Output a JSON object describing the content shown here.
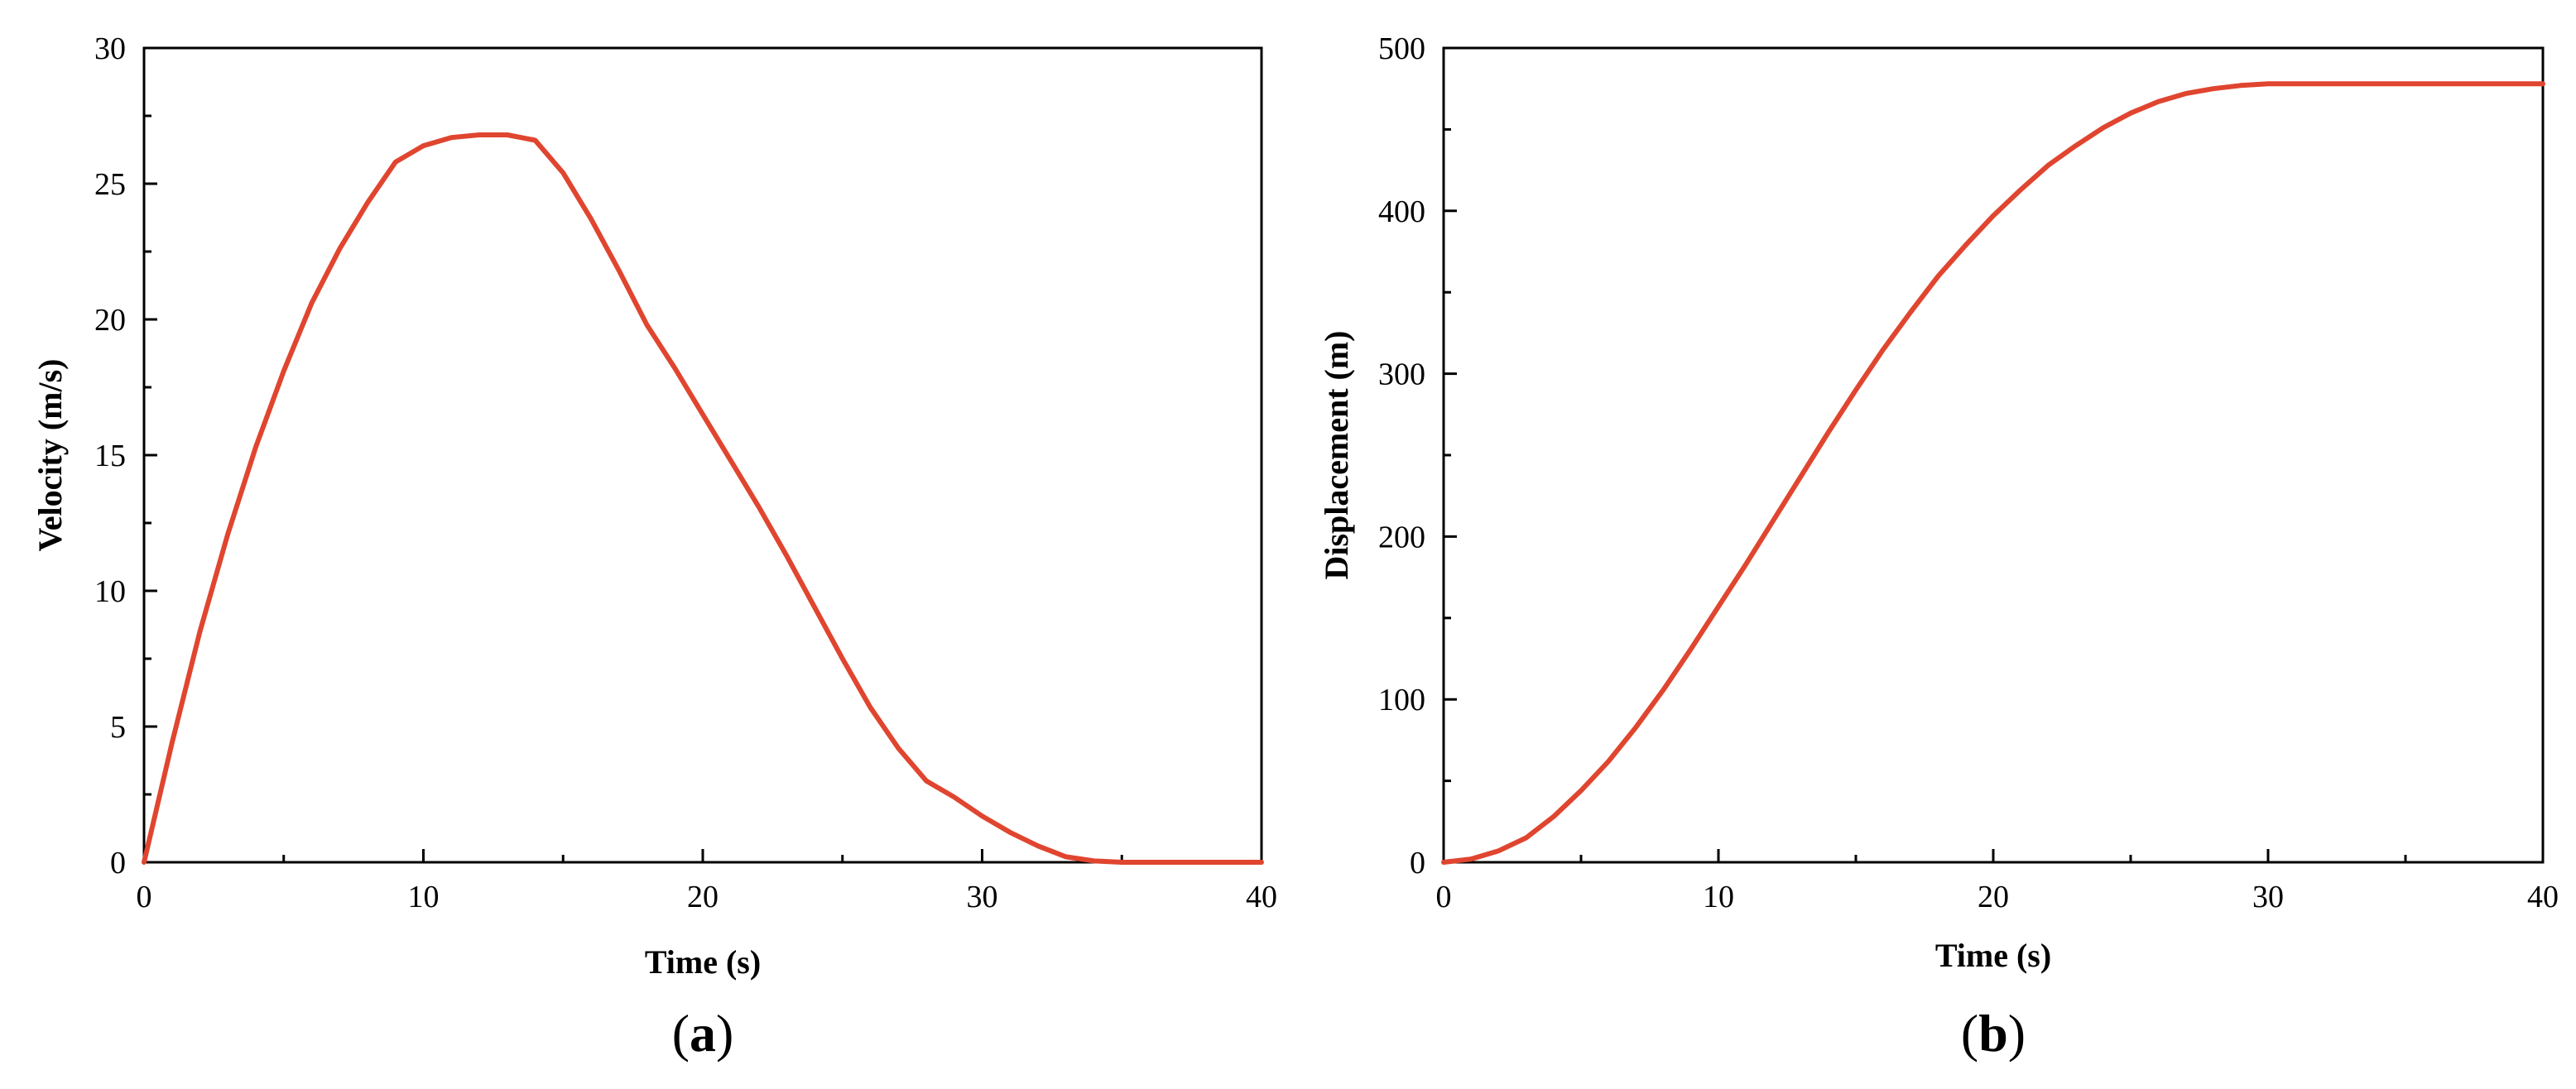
{
  "chart_data": [
    {
      "panel_label": "a",
      "type": "line",
      "title": "",
      "xlabel": "Time (s)",
      "ylabel": "Velocity (m/s)",
      "xlim": [
        0,
        40
      ],
      "ylim": [
        0,
        30
      ],
      "xticks": [
        0,
        10,
        20,
        30,
        40
      ],
      "yticks": [
        0,
        5,
        10,
        15,
        20,
        25,
        30
      ],
      "grid": false,
      "legend": "none",
      "series": [
        {
          "color": "#e0452f",
          "x": [
            0,
            1,
            2,
            3,
            4,
            5,
            6,
            7,
            8,
            9,
            10,
            11,
            12,
            13,
            14,
            15,
            16,
            17,
            18,
            19,
            20,
            21,
            22,
            23,
            24,
            25,
            26,
            27,
            28,
            29,
            30,
            31,
            32,
            33,
            34,
            35,
            36,
            37,
            38,
            39,
            40
          ],
          "y": [
            0,
            4.4,
            8.5,
            12.1,
            15.3,
            18.1,
            20.6,
            22.6,
            24.3,
            25.8,
            26.4,
            26.7,
            26.8,
            26.8,
            26.6,
            25.4,
            23.7,
            21.8,
            19.8,
            18.2,
            16.5,
            14.8,
            13.1,
            11.3,
            9.4,
            7.5,
            5.7,
            4.2,
            3.0,
            2.4,
            1.7,
            1.1,
            0.6,
            0.2,
            0.05,
            0,
            0,
            0,
            0,
            0,
            0
          ]
        }
      ]
    },
    {
      "panel_label": "b",
      "type": "line",
      "title": "",
      "xlabel": "Time (s)",
      "ylabel": "Displacement (m)",
      "xlim": [
        0,
        40
      ],
      "ylim": [
        0,
        500
      ],
      "xticks": [
        0,
        10,
        20,
        30,
        40
      ],
      "yticks": [
        0,
        100,
        200,
        300,
        400,
        500
      ],
      "grid": false,
      "legend": "none",
      "series": [
        {
          "color": "#e0452f",
          "x": [
            0,
            1,
            2,
            3,
            4,
            5,
            6,
            7,
            8,
            9,
            10,
            11,
            12,
            13,
            14,
            15,
            16,
            17,
            18,
            19,
            20,
            21,
            22,
            23,
            24,
            25,
            26,
            27,
            28,
            29,
            30,
            31,
            32,
            33,
            34,
            35,
            36,
            37,
            38,
            39,
            40
          ],
          "y": [
            0,
            2,
            7,
            15,
            28,
            44,
            62,
            83,
            106,
            131,
            157,
            183,
            210,
            237,
            264,
            290,
            315,
            338,
            360,
            379,
            397,
            413,
            428,
            440,
            451,
            460,
            467,
            472,
            475,
            477,
            478,
            478,
            478,
            478,
            478,
            478,
            478,
            478,
            478,
            478,
            478
          ]
        }
      ]
    }
  ]
}
